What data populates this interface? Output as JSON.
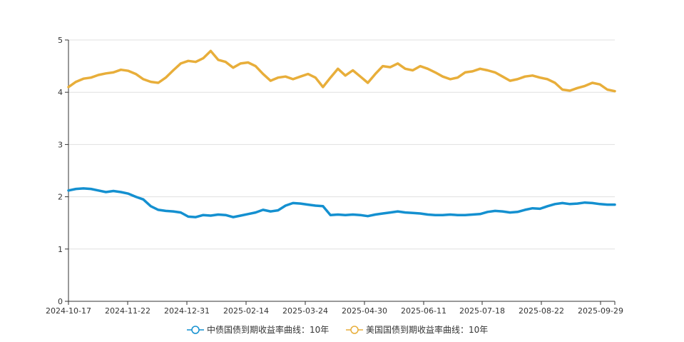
{
  "chart_data": {
    "type": "line",
    "title": "",
    "xlabel": "",
    "ylabel": "",
    "ylim": [
      0,
      5
    ],
    "y_ticks": [
      "0",
      "1",
      "2",
      "3",
      "4",
      "5"
    ],
    "x_tick_labels": [
      "2024-10-17",
      "2024-11-22",
      "2024-12-31",
      "2025-02-14",
      "2025-03-24",
      "2025-04-30",
      "2025-06-11",
      "2025-07-18",
      "2025-08-22",
      "2025-09-29"
    ],
    "grid": "horizontal",
    "legend_position": "bottom-center",
    "series": [
      {
        "name": "中债国债到期收益率曲线：10年",
        "color": "#1490d0",
        "values": [
          2.12,
          2.15,
          2.16,
          2.15,
          2.12,
          2.09,
          2.11,
          2.09,
          2.06,
          2.0,
          1.95,
          1.82,
          1.75,
          1.73,
          1.72,
          1.7,
          1.62,
          1.61,
          1.65,
          1.64,
          1.66,
          1.65,
          1.61,
          1.64,
          1.67,
          1.7,
          1.75,
          1.72,
          1.74,
          1.83,
          1.88,
          1.87,
          1.85,
          1.83,
          1.82,
          1.65,
          1.66,
          1.65,
          1.66,
          1.65,
          1.63,
          1.66,
          1.68,
          1.7,
          1.72,
          1.7,
          1.69,
          1.68,
          1.66,
          1.65,
          1.65,
          1.66,
          1.65,
          1.65,
          1.66,
          1.67,
          1.71,
          1.73,
          1.72,
          1.7,
          1.71,
          1.75,
          1.78,
          1.77,
          1.82,
          1.86,
          1.88,
          1.86,
          1.87,
          1.89,
          1.88,
          1.86,
          1.85,
          1.85
        ]
      },
      {
        "name": "美国国债到期收益率曲线：10年",
        "color": "#e8ae3a",
        "values": [
          4.1,
          4.2,
          4.26,
          4.28,
          4.33,
          4.36,
          4.38,
          4.43,
          4.41,
          4.35,
          4.25,
          4.2,
          4.18,
          4.28,
          4.42,
          4.55,
          4.6,
          4.58,
          4.65,
          4.79,
          4.62,
          4.58,
          4.47,
          4.55,
          4.57,
          4.5,
          4.35,
          4.22,
          4.28,
          4.3,
          4.25,
          4.3,
          4.35,
          4.28,
          4.1,
          4.28,
          4.45,
          4.32,
          4.42,
          4.3,
          4.18,
          4.35,
          4.5,
          4.48,
          4.55,
          4.45,
          4.42,
          4.5,
          4.45,
          4.38,
          4.3,
          4.25,
          4.28,
          4.38,
          4.4,
          4.45,
          4.42,
          4.38,
          4.3,
          4.22,
          4.25,
          4.3,
          4.32,
          4.28,
          4.25,
          4.18,
          4.05,
          4.03,
          4.08,
          4.12,
          4.18,
          4.15,
          4.05,
          4.02
        ]
      }
    ]
  }
}
